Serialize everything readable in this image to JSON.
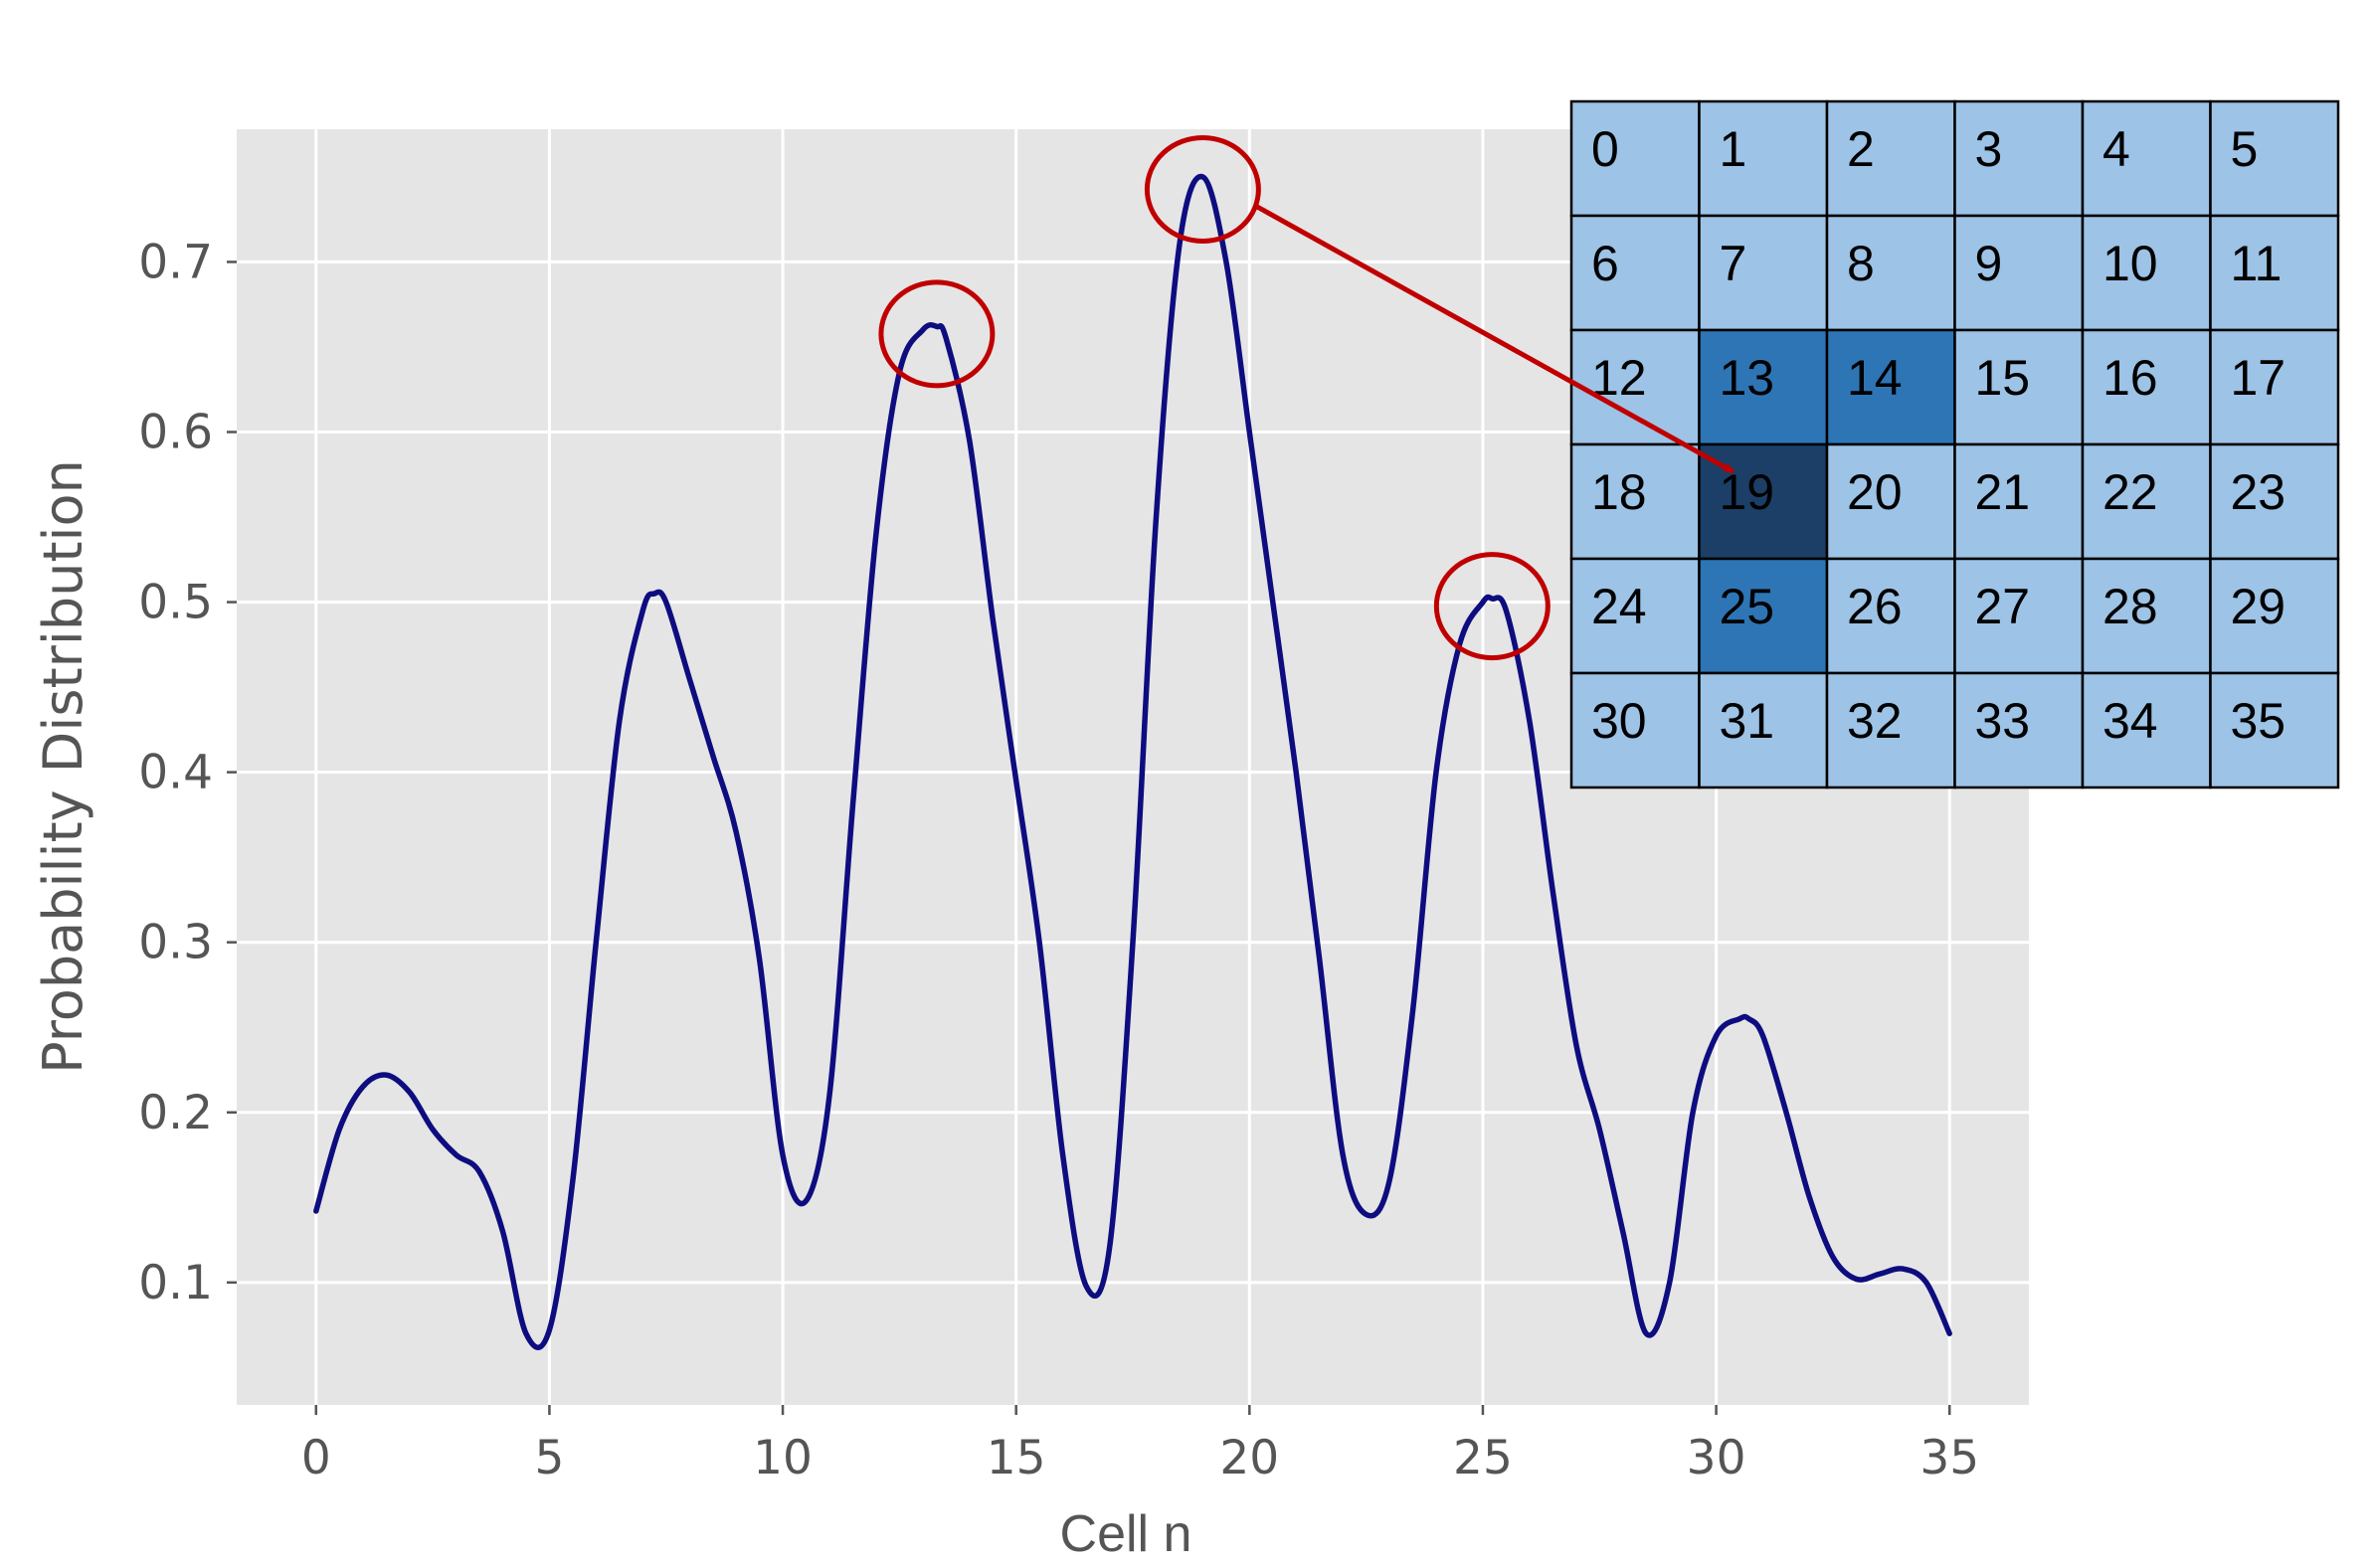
{
  "chart_data": {
    "type": "line",
    "xlabel": "Cell n",
    "ylabel": "Probability Distribution",
    "xlim": [
      -1.7,
      36.7
    ],
    "ylim": [
      0.028,
      0.778
    ],
    "x_ticks": [
      0,
      5,
      10,
      15,
      20,
      25,
      30,
      35
    ],
    "y_ticks": [
      0.1,
      0.2,
      0.3,
      0.4,
      0.5,
      0.6,
      0.7
    ],
    "grid": true,
    "line_color": "#0d0d80",
    "background_color": "#e5e5e5",
    "series": [
      {
        "x": [
          0,
          0.5,
          1,
          1.5,
          2,
          2.5,
          3,
          3.5,
          4,
          4.5,
          5,
          5.5,
          6,
          6.5,
          7,
          7.25,
          7.5,
          8,
          8.5,
          9,
          9.5,
          10,
          10.5,
          11,
          11.5,
          12,
          12.5,
          13,
          13.3,
          13.5,
          14,
          14.5,
          15,
          15.5,
          16,
          16.5,
          17,
          17.5,
          18,
          18.5,
          19,
          19.5,
          20,
          20.5,
          21,
          21.5,
          22,
          22.5,
          23,
          23.5,
          24,
          24.5,
          25,
          25.2,
          25.5,
          26,
          26.5,
          27,
          27.5,
          28,
          28.5,
          29,
          29.5,
          30,
          30.5,
          30.7,
          31,
          31.5,
          32,
          32.5,
          33,
          33.5,
          34,
          34.5,
          35
        ],
        "y": [
          0.142,
          0.19,
          0.215,
          0.222,
          0.212,
          0.19,
          0.175,
          0.165,
          0.13,
          0.07,
          0.072,
          0.16,
          0.3,
          0.43,
          0.495,
          0.505,
          0.5,
          0.455,
          0.41,
          0.365,
          0.29,
          0.175,
          0.148,
          0.21,
          0.38,
          0.54,
          0.635,
          0.66,
          0.662,
          0.655,
          0.595,
          0.49,
          0.395,
          0.3,
          0.175,
          0.098,
          0.12,
          0.3,
          0.55,
          0.71,
          0.75,
          0.7,
          0.6,
          0.5,
          0.4,
          0.29,
          0.175,
          0.14,
          0.16,
          0.26,
          0.4,
          0.475,
          0.5,
          0.502,
          0.495,
          0.43,
          0.33,
          0.24,
          0.19,
          0.13,
          0.07,
          0.1,
          0.2,
          0.245,
          0.255,
          0.255,
          0.245,
          0.2,
          0.15,
          0.115,
          0.102,
          0.105,
          0.108,
          0.1,
          0.07
        ]
      }
    ],
    "highlighted_peaks": [
      {
        "x": 13.3,
        "y": 0.66
      },
      {
        "x": 19.0,
        "y": 0.745
      },
      {
        "x": 25.2,
        "y": 0.5
      }
    ],
    "annotation_color": "#c00000",
    "arrow": {
      "from_peak_x": 19.0,
      "to_cell": 19
    }
  },
  "grid_inset": {
    "rows": 6,
    "cols": 6,
    "cells": [
      "0",
      "1",
      "2",
      "3",
      "4",
      "5",
      "6",
      "7",
      "8",
      "9",
      "10",
      "11",
      "12",
      "13",
      "14",
      "15",
      "16",
      "17",
      "18",
      "19",
      "20",
      "21",
      "22",
      "23",
      "24",
      "25",
      "26",
      "27",
      "28",
      "29",
      "30",
      "31",
      "32",
      "33",
      "34",
      "35"
    ],
    "highlight_medium": [
      13,
      14,
      25
    ],
    "highlight_dark": [
      19
    ],
    "colors": {
      "light": "#9dc3e6",
      "medium": "#2e75b6",
      "dark": "#1b3f66",
      "border": "#000000"
    }
  }
}
